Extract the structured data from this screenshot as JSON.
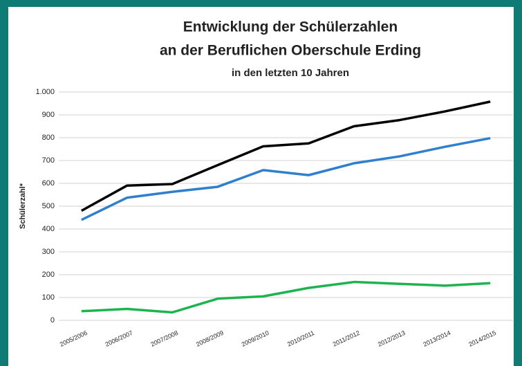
{
  "chart_data": {
    "type": "line",
    "title": "Entwicklung der Schülerzahlen",
    "title_line2": "an der Beruflichen Oberschule Erding",
    "subtitle": "in den letzten 10 Jahren",
    "y_label": "Schülerzahl*",
    "categories": [
      "2005/2006",
      "2006/2007",
      "2007/2008",
      "2008/2009",
      "2009/2010",
      "2010/2011",
      "2011/2012",
      "2012/2013",
      "2013/2014",
      "2014/2015"
    ],
    "series": [
      {
        "color": "#000000",
        "values": [
          480,
          590,
          597,
          680,
          762,
          775,
          850,
          877,
          915,
          958
        ]
      },
      {
        "color": "#2f7fcf",
        "values": [
          440,
          537,
          563,
          585,
          658,
          636,
          688,
          718,
          760,
          798
        ]
      },
      {
        "color": "#1db34f",
        "values": [
          40,
          50,
          35,
          95,
          105,
          142,
          168,
          160,
          152,
          163
        ]
      }
    ],
    "ylim": [
      0,
      1000
    ],
    "yticks": [
      0,
      100,
      200,
      300,
      400,
      500,
      600,
      700,
      800,
      900,
      {
        "value": 1000,
        "label": "1.000"
      }
    ],
    "grid": true
  }
}
